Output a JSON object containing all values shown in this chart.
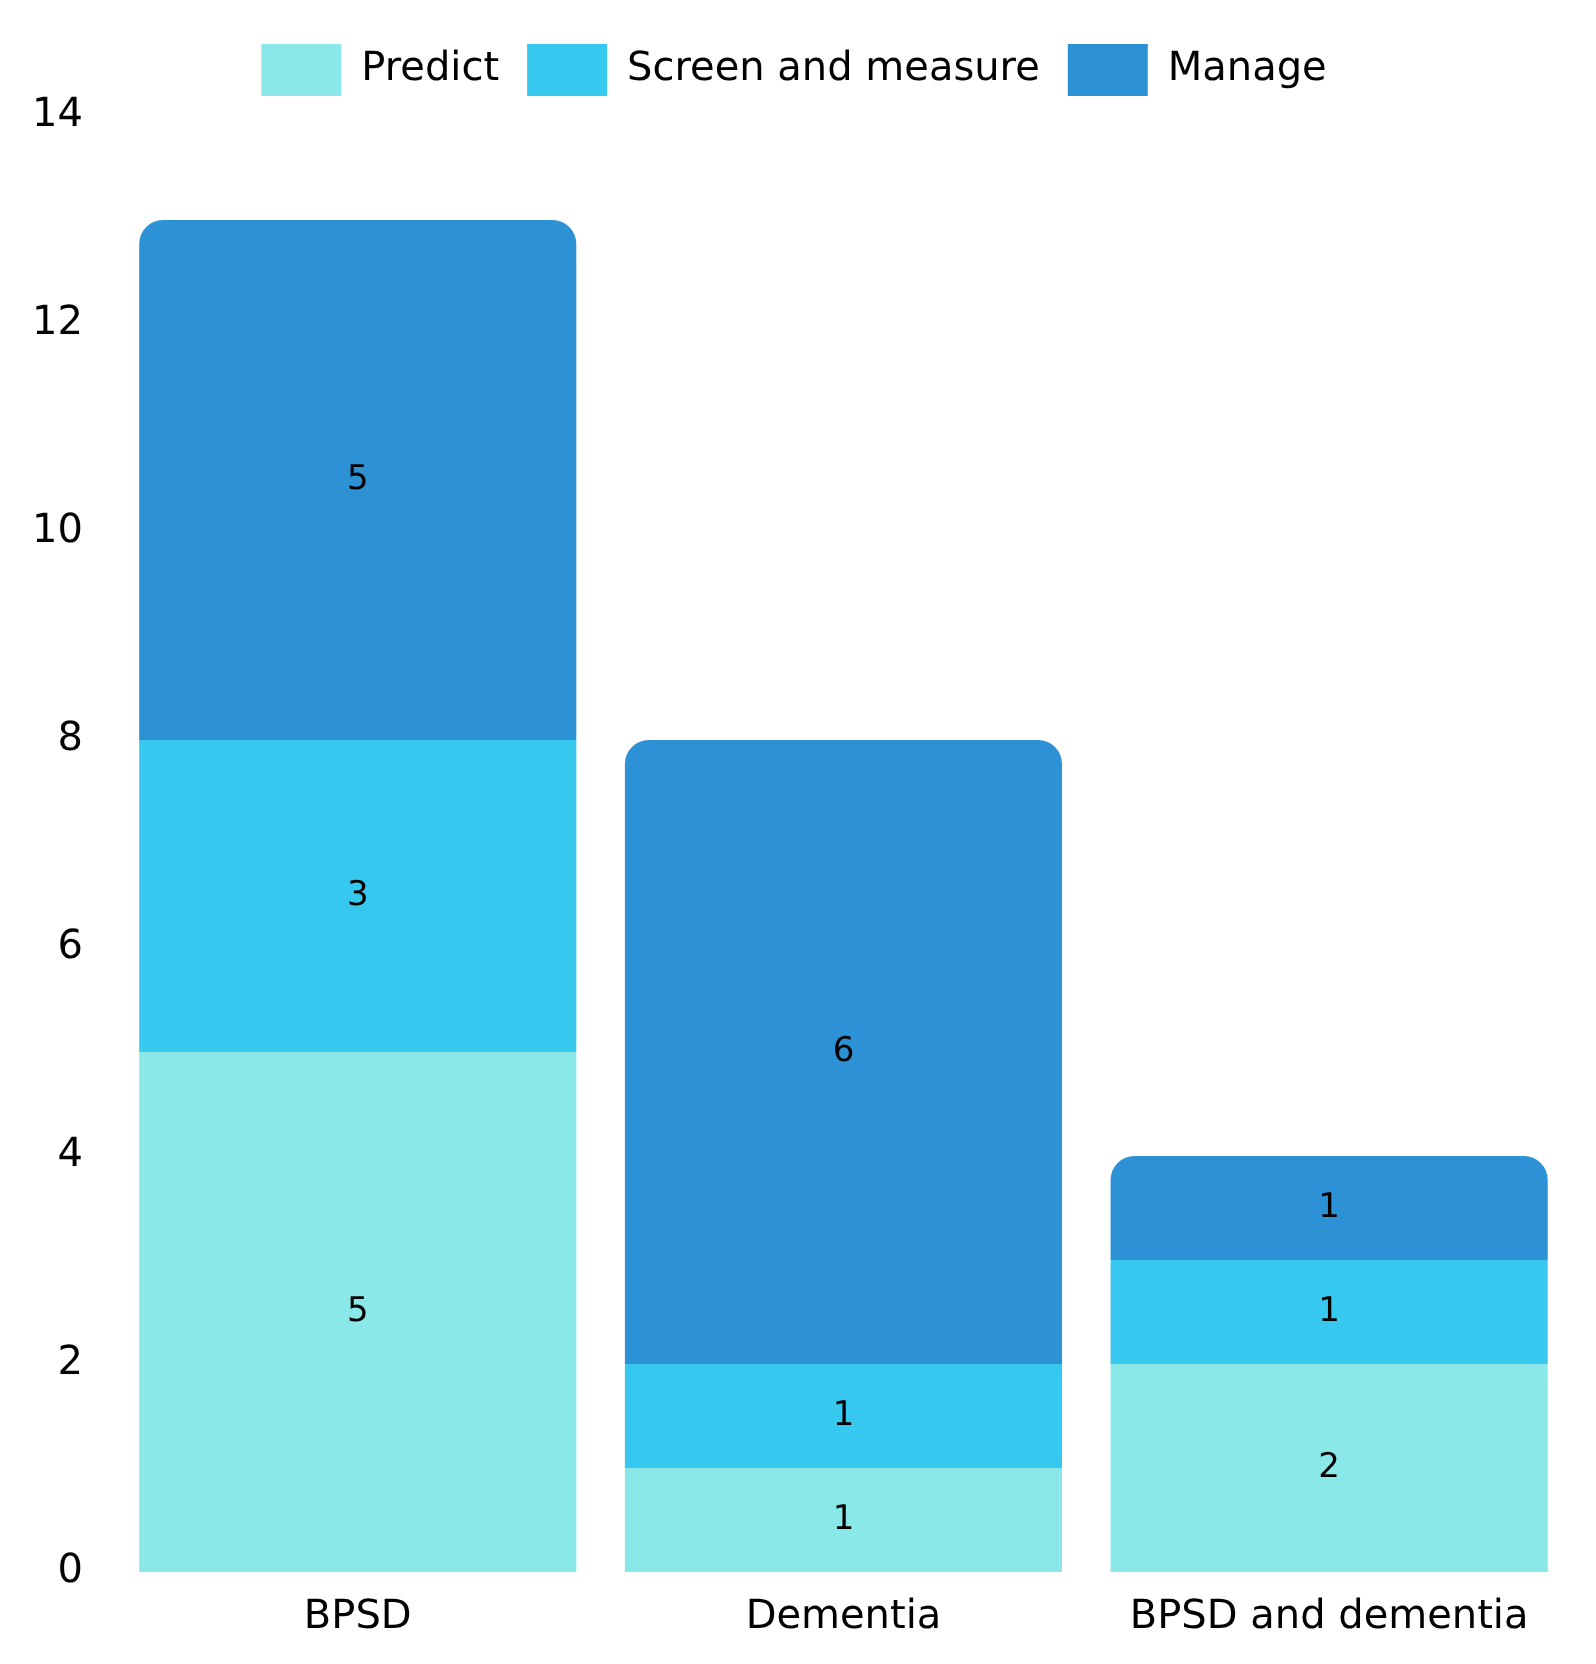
{
  "chart_data": {
    "type": "bar",
    "stacked": true,
    "categories": [
      "BPSD",
      "Dementia",
      "BPSD and dementia"
    ],
    "series": [
      {
        "name": "Predict",
        "color": "#8ae8e8",
        "values": [
          5,
          1,
          2
        ]
      },
      {
        "name": "Screen and measure",
        "color": "#36c8ee",
        "values": [
          3,
          1,
          1
        ]
      },
      {
        "name": "Manage",
        "color": "#2d91d6",
        "values": [
          5,
          6,
          1
        ]
      }
    ],
    "ylim": [
      0,
      14
    ],
    "yticks": [
      0,
      2,
      4,
      6,
      8,
      10,
      12,
      14
    ],
    "grid": false,
    "legend": "top",
    "data_labels": true
  }
}
